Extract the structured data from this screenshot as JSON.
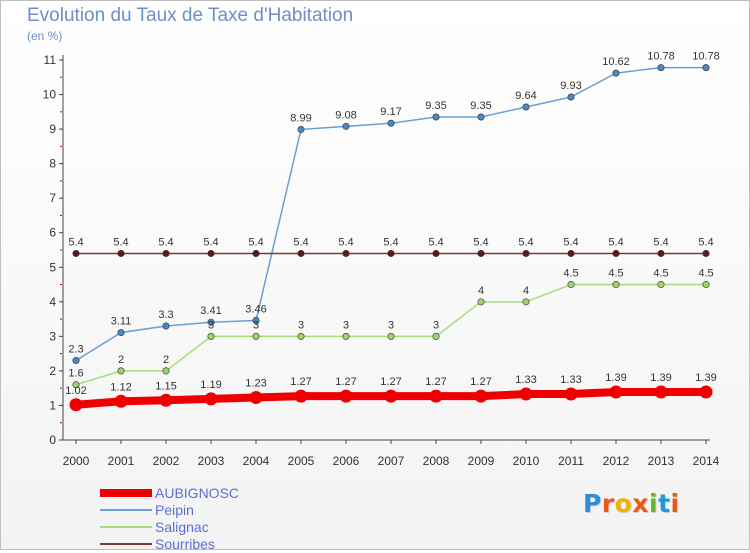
{
  "header": {
    "title": "Evolution du Taux de Taxe d'Habitation",
    "subtitle": "(en %)"
  },
  "logo": {
    "text": "Proxiti",
    "letter_colors": [
      "#2a8fd6",
      "#e8591a",
      "#f0b400",
      "#e8591a",
      "#66b32e",
      "#1f9ad6",
      "#e8591a"
    ]
  },
  "colors": {
    "axis": "#444444",
    "grid": "#dddddd",
    "tick_red": "#cc0000",
    "label": "#333333"
  },
  "chart_data": {
    "type": "line",
    "title": "Evolution du Taux de Taxe d'Habitation",
    "subtitle": "(en %)",
    "xlabel": "",
    "ylabel": "",
    "x": [
      "2000",
      "2001",
      "2002",
      "2003",
      "2004",
      "2005",
      "2006",
      "2007",
      "2008",
      "2009",
      "2010",
      "2011",
      "2012",
      "2013",
      "2014"
    ],
    "ylim": [
      0,
      11
    ],
    "yticks": [
      "0",
      "1",
      "2",
      "3",
      "4",
      "5",
      "6",
      "7",
      "8",
      "9",
      "10",
      "11"
    ],
    "grid": false,
    "legend_position": "bottom-left",
    "series": [
      {
        "name": "AUBIGNOSC",
        "color": "#ee0000",
        "emphasis": true,
        "values": [
          1.02,
          1.12,
          1.15,
          1.19,
          1.23,
          1.27,
          1.27,
          1.27,
          1.27,
          1.27,
          1.33,
          1.33,
          1.39,
          1.39,
          1.39
        ],
        "labels": [
          "1.02",
          "1.12",
          "1.15",
          "1.19",
          "1.23",
          "1.27",
          "1.27",
          "1.27",
          "1.27",
          "1.27",
          "1.33",
          "1.33",
          "1.39",
          "1.39",
          "1.39"
        ]
      },
      {
        "name": "Peipin",
        "color": "#6a9fd4",
        "marker_color": "#4a88c6",
        "values": [
          2.3,
          3.11,
          3.3,
          3.41,
          3.46,
          8.99,
          9.08,
          9.17,
          9.35,
          9.35,
          9.64,
          9.93,
          10.62,
          10.78,
          10.78
        ],
        "labels": [
          "2.3",
          "3.11",
          "3.3",
          "3.41",
          "3.46",
          "8.99",
          "9.08",
          "9.17",
          "9.35",
          "9.35",
          "9.64",
          "9.93",
          "10.62",
          "10.78",
          "10.78"
        ]
      },
      {
        "name": "Salignac",
        "color": "#a8dc7a",
        "marker_color": "#9bd46b",
        "values": [
          1.6,
          2,
          2,
          3,
          3,
          3,
          3,
          3,
          3,
          4,
          4,
          4.5,
          4.5,
          4.5,
          4.5
        ],
        "labels": [
          "1.6",
          "2",
          "2",
          "3",
          "3",
          "3",
          "3",
          "3",
          "3",
          "4",
          "4",
          "4.5",
          "4.5",
          "4.5",
          "4.5"
        ]
      },
      {
        "name": "Sourribes",
        "color": "#7a3a3a",
        "marker_color": "#5a1a1a",
        "values": [
          5.4,
          5.4,
          5.4,
          5.4,
          5.4,
          5.4,
          5.4,
          5.4,
          5.4,
          5.4,
          5.4,
          5.4,
          5.4,
          5.4,
          5.4
        ],
        "labels": [
          "5.4",
          "5.4",
          "5.4",
          "5.4",
          "5.4",
          "5.4",
          "5.4",
          "5.4",
          "5.4",
          "5.4",
          "5.4",
          "5.4",
          "5.4",
          "5.4",
          "5.4"
        ]
      }
    ]
  }
}
